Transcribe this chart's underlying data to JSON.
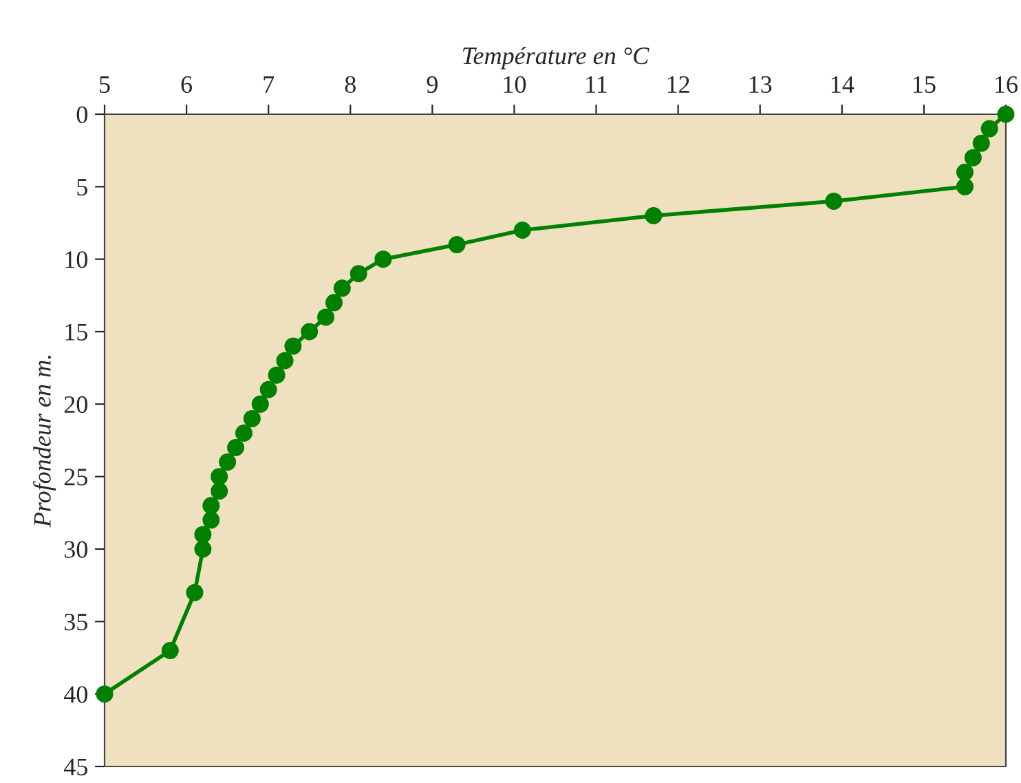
{
  "chart_data": {
    "type": "line",
    "xlabel": "Température en °C",
    "ylabel": "Profondeur en m.",
    "series": [
      {
        "color": "#008000",
        "x": [
          16,
          15.8,
          15.7,
          15.6,
          15.5,
          15.5,
          13.9,
          11.7,
          10.1,
          9.3,
          8.4,
          8.1,
          7.9,
          7.8,
          7.7,
          7.5,
          7.3,
          7.2,
          7.1,
          7.0,
          6.9,
          6.8,
          6.7,
          6.6,
          6.5,
          6.4,
          6.4,
          6.3,
          6.3,
          6.2,
          6.2,
          6.1,
          5.8,
          5.0
        ],
        "values": [
          0,
          1,
          2,
          3,
          4,
          5,
          6,
          7,
          8,
          9,
          10,
          11,
          12,
          13,
          14,
          15,
          16,
          17,
          18,
          19,
          20,
          21,
          22,
          23,
          24,
          25,
          26,
          27,
          28,
          29,
          30,
          33,
          37,
          40
        ]
      }
    ],
    "xlim": [
      5,
      16
    ],
    "xticks": [
      5,
      6,
      7,
      8,
      9,
      10,
      11,
      12,
      13,
      14,
      15,
      16
    ],
    "ylim": [
      45,
      0
    ],
    "yticks": [
      0,
      5,
      10,
      15,
      20,
      25,
      30,
      35,
      40,
      45
    ],
    "marker": "circle",
    "line_style": "solid",
    "grid": false,
    "legend": false
  }
}
